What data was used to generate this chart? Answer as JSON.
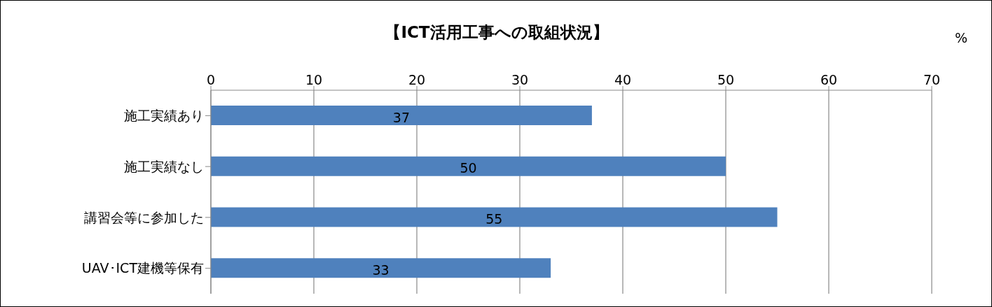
{
  "chart_data": {
    "type": "bar",
    "orientation": "horizontal",
    "title": "【ICT活用工事への取組状況】",
    "xlabel": "%",
    "categories": [
      "施工実績あり",
      "施工実績なし",
      "講習会等に参加した",
      "UAV･ICT建機等保有"
    ],
    "values": [
      37,
      50,
      55,
      33
    ],
    "color": "#4f81bd",
    "xlim": [
      0,
      70
    ],
    "xticks": [
      0,
      10,
      20,
      30,
      40,
      50,
      60,
      70
    ],
    "grid": "x",
    "data_labels": true,
    "legend": false
  }
}
